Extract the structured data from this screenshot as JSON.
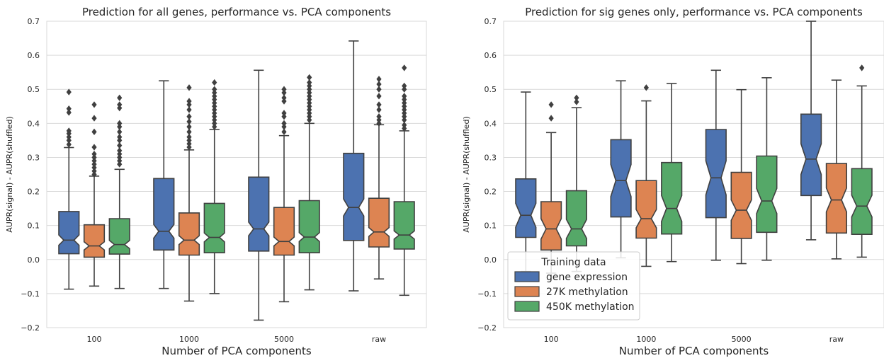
{
  "colors": {
    "gene expression": "#4c72b0",
    "27K methylation": "#dd8452",
    "450K methylation": "#55a868",
    "grid": "#d9d9d9",
    "line": "#404040"
  },
  "legend": {
    "title": "Training data",
    "entries": [
      "gene expression",
      "27K methylation",
      "450K methylation"
    ]
  },
  "chart_data": [
    {
      "type": "boxplot",
      "title": "Prediction for all genes, performance vs. PCA components",
      "xlabel": "Number of PCA components",
      "ylabel": "AUPR(signal) - AUPR(shuffled)",
      "ylim": [
        -0.2,
        0.7
      ],
      "yticks": [
        -0.2,
        -0.1,
        0.0,
        0.1,
        0.2,
        0.3,
        0.4,
        0.5,
        0.6,
        0.7
      ],
      "ytick_labels": [
        "−0.2",
        "−0.1",
        "0.0",
        "0.1",
        "0.2",
        "0.3",
        "0.4",
        "0.5",
        "0.6",
        "0.7"
      ],
      "categories": [
        "100",
        "1000",
        "5000",
        "raw"
      ],
      "grid": true,
      "series": [
        {
          "name": "gene expression",
          "boxes": [
            {
              "whislo": -0.087,
              "q1": 0.017,
              "med": 0.057,
              "q3": 0.141,
              "whishi": 0.329,
              "notch": [
                0.042,
                0.072
              ],
              "fliers": [
                0.338,
                0.35,
                0.36,
                0.37,
                0.378,
                0.432,
                0.443,
                0.492
              ]
            },
            {
              "whislo": -0.085,
              "q1": 0.028,
              "med": 0.083,
              "q3": 0.238,
              "whishi": 0.525,
              "notch": [
                0.063,
                0.103
              ],
              "fliers": []
            },
            {
              "whislo": -0.178,
              "q1": 0.025,
              "med": 0.09,
              "q3": 0.242,
              "whishi": 0.556,
              "notch": [
                0.07,
                0.11
              ],
              "fliers": []
            },
            {
              "whislo": -0.092,
              "q1": 0.056,
              "med": 0.153,
              "q3": 0.312,
              "whishi": 0.642,
              "notch": [
                0.128,
                0.178
              ],
              "fliers": []
            }
          ]
        },
        {
          "name": "27K methylation",
          "boxes": [
            {
              "whislo": -0.078,
              "q1": 0.007,
              "med": 0.04,
              "q3": 0.102,
              "whishi": 0.245,
              "notch": [
                0.028,
                0.052
              ],
              "fliers": [
                0.25,
                0.26,
                0.27,
                0.28,
                0.29,
                0.3,
                0.31,
                0.33,
                0.375,
                0.415,
                0.455
              ]
            },
            {
              "whislo": -0.122,
              "q1": 0.013,
              "med": 0.057,
              "q3": 0.137,
              "whishi": 0.322,
              "notch": [
                0.044,
                0.07
              ],
              "fliers": [
                0.33,
                0.34,
                0.35,
                0.36,
                0.375,
                0.39,
                0.405,
                0.42,
                0.44,
                0.455,
                0.465,
                0.505
              ]
            },
            {
              "whislo": -0.124,
              "q1": 0.013,
              "med": 0.053,
              "q3": 0.153,
              "whishi": 0.364,
              "notch": [
                0.04,
                0.066
              ],
              "fliers": [
                0.375,
                0.39,
                0.4,
                0.42,
                0.43,
                0.465,
                0.475,
                0.49,
                0.5
              ]
            },
            {
              "whislo": -0.057,
              "q1": 0.037,
              "med": 0.081,
              "q3": 0.18,
              "whishi": 0.396,
              "notch": [
                0.068,
                0.094
              ],
              "fliers": [
                0.4,
                0.41,
                0.42,
                0.44,
                0.455,
                0.48,
                0.5,
                0.515,
                0.53
              ]
            }
          ]
        },
        {
          "name": "450K methylation",
          "boxes": [
            {
              "whislo": -0.085,
              "q1": 0.016,
              "med": 0.044,
              "q3": 0.12,
              "whishi": 0.265,
              "notch": [
                0.032,
                0.056
              ],
              "fliers": [
                0.28,
                0.29,
                0.3,
                0.31,
                0.32,
                0.335,
                0.35,
                0.36,
                0.375,
                0.39,
                0.4,
                0.445,
                0.455,
                0.475
              ]
            },
            {
              "whislo": -0.1,
              "q1": 0.02,
              "med": 0.065,
              "q3": 0.165,
              "whishi": 0.382,
              "notch": [
                0.052,
                0.078
              ],
              "fliers": [
                0.39,
                0.4,
                0.41,
                0.42,
                0.43,
                0.44,
                0.45,
                0.46,
                0.47,
                0.48,
                0.49,
                0.5,
                0.52
              ]
            },
            {
              "whislo": -0.089,
              "q1": 0.02,
              "med": 0.066,
              "q3": 0.173,
              "whishi": 0.4,
              "notch": [
                0.053,
                0.079
              ],
              "fliers": [
                0.41,
                0.42,
                0.43,
                0.44,
                0.45,
                0.46,
                0.47,
                0.48,
                0.49,
                0.5,
                0.51,
                0.52,
                0.535
              ]
            },
            {
              "whislo": -0.105,
              "q1": 0.031,
              "med": 0.072,
              "q3": 0.17,
              "whishi": 0.378,
              "notch": [
                0.06,
                0.084
              ],
              "fliers": [
                0.385,
                0.395,
                0.41,
                0.42,
                0.43,
                0.44,
                0.45,
                0.46,
                0.47,
                0.48,
                0.5,
                0.51,
                0.563
              ]
            }
          ]
        }
      ]
    },
    {
      "type": "boxplot",
      "title": "Prediction for sig genes only, performance vs. PCA components",
      "xlabel": "Number of PCA components",
      "ylabel": "AUPR(signal) - AUPR(shuffled)",
      "ylim": [
        -0.2,
        0.7
      ],
      "yticks": [
        -0.2,
        -0.1,
        0.0,
        0.1,
        0.2,
        0.3,
        0.4,
        0.5,
        0.6,
        0.7
      ],
      "ytick_labels": [
        "−0.2",
        "−0.1",
        "0.0",
        "0.1",
        "0.2",
        "0.3",
        "0.4",
        "0.5",
        "0.6",
        "0.7"
      ],
      "categories": [
        "100",
        "1000",
        "5000",
        "raw"
      ],
      "grid": true,
      "legend_position": "lower-left",
      "series": [
        {
          "name": "gene expression",
          "boxes": [
            {
              "whislo": -0.035,
              "q1": 0.065,
              "med": 0.13,
              "q3": 0.237,
              "whishi": 0.492,
              "notch": [
                0.095,
                0.165
              ],
              "fliers": []
            },
            {
              "whislo": 0.005,
              "q1": 0.125,
              "med": 0.232,
              "q3": 0.352,
              "whishi": 0.525,
              "notch": [
                0.185,
                0.279
              ],
              "fliers": []
            },
            {
              "whislo": -0.002,
              "q1": 0.123,
              "med": 0.24,
              "q3": 0.382,
              "whishi": 0.556,
              "notch": [
                0.19,
                0.29
              ],
              "fliers": []
            },
            {
              "whislo": 0.058,
              "q1": 0.188,
              "med": 0.295,
              "q3": 0.427,
              "whishi": 0.7,
              "notch": [
                0.25,
                0.34
              ],
              "fliers": []
            }
          ]
        },
        {
          "name": "27K methylation",
          "boxes": [
            {
              "whislo": -0.04,
              "q1": 0.028,
              "med": 0.09,
              "q3": 0.17,
              "whishi": 0.373,
              "notch": [
                0.06,
                0.12
              ],
              "fliers": [
                0.415,
                0.455
              ]
            },
            {
              "whislo": -0.02,
              "q1": 0.063,
              "med": 0.12,
              "q3": 0.232,
              "whishi": 0.466,
              "notch": [
                0.093,
                0.147
              ],
              "fliers": [
                0.505
              ]
            },
            {
              "whislo": -0.012,
              "q1": 0.062,
              "med": 0.145,
              "q3": 0.256,
              "whishi": 0.499,
              "notch": [
                0.115,
                0.175
              ],
              "fliers": []
            },
            {
              "whislo": 0.002,
              "q1": 0.078,
              "med": 0.175,
              "q3": 0.282,
              "whishi": 0.527,
              "notch": [
                0.14,
                0.21
              ],
              "fliers": []
            }
          ]
        },
        {
          "name": "450K methylation",
          "boxes": [
            {
              "whislo": -0.035,
              "q1": 0.04,
              "med": 0.09,
              "q3": 0.202,
              "whishi": 0.446,
              "notch": [
                0.062,
                0.118
              ],
              "fliers": [
                0.463,
                0.475
              ]
            },
            {
              "whislo": -0.006,
              "q1": 0.075,
              "med": 0.15,
              "q3": 0.285,
              "whishi": 0.517,
              "notch": [
                0.112,
                0.188
              ],
              "fliers": []
            },
            {
              "whislo": -0.002,
              "q1": 0.08,
              "med": 0.172,
              "q3": 0.304,
              "whishi": 0.534,
              "notch": [
                0.135,
                0.209
              ],
              "fliers": []
            },
            {
              "whislo": 0.007,
              "q1": 0.074,
              "med": 0.157,
              "q3": 0.267,
              "whishi": 0.51,
              "notch": [
                0.125,
                0.189
              ],
              "fliers": [
                0.563
              ]
            }
          ]
        }
      ]
    }
  ]
}
